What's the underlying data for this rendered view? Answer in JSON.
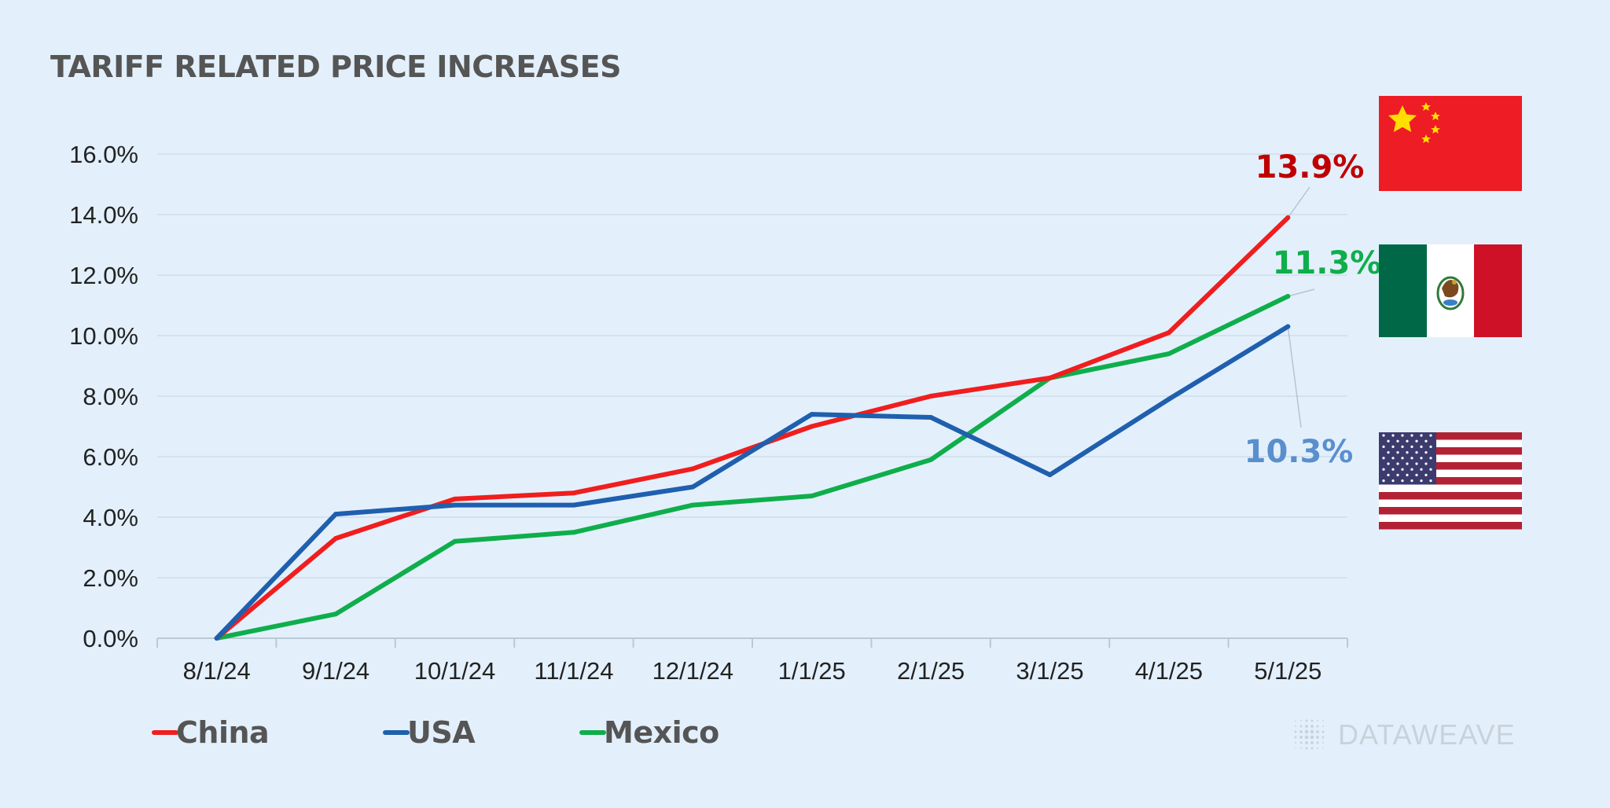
{
  "chart_data": {
    "type": "line",
    "title": "TARIFF RELATED PRICE INCREASES",
    "categories": [
      "8/1/24",
      "9/1/24",
      "10/1/24",
      "11/1/24",
      "12/1/24",
      "1/1/25",
      "2/1/25",
      "3/1/25",
      "4/1/25",
      "5/1/25"
    ],
    "y_ticks": [
      "0.0%",
      "2.0%",
      "4.0%",
      "6.0%",
      "8.0%",
      "10.0%",
      "12.0%",
      "14.0%",
      "16.0%"
    ],
    "ylim": [
      0,
      16
    ],
    "y_unit": "%",
    "grid": true,
    "legend_position": "bottom-left",
    "series": [
      {
        "name": "China",
        "color": "#f01e1e",
        "end_label": "13.9%",
        "end_label_color": "#c00000",
        "flag": "china-flag",
        "values": [
          0.0,
          3.3,
          4.6,
          4.8,
          5.6,
          7.0,
          8.0,
          8.6,
          10.1,
          13.9
        ]
      },
      {
        "name": "USA",
        "color": "#1f5fae",
        "end_label": "10.3%",
        "end_label_color": "#5a8fcd",
        "flag": "usa-flag",
        "values": [
          0.0,
          4.1,
          4.4,
          4.4,
          5.0,
          7.4,
          7.3,
          5.4,
          7.9,
          10.3
        ]
      },
      {
        "name": "Mexico",
        "color": "#0fae4b",
        "end_label": "11.3%",
        "end_label_color": "#0fae4b",
        "flag": "mexico-flag",
        "values": [
          0.0,
          0.8,
          3.2,
          3.5,
          4.4,
          4.7,
          5.9,
          8.6,
          9.4,
          11.3
        ]
      }
    ]
  },
  "brand": {
    "name": "DATAWEAVE",
    "icon": "dot-grid-logo-icon"
  },
  "colors": {
    "background": "#e3f0fc",
    "china_red": "#ee1c25",
    "china_yellow": "#ffde00",
    "mexico_green": "#006847",
    "mexico_red": "#ce1126",
    "usa_red": "#b22234",
    "usa_blue": "#3c3b6e"
  }
}
